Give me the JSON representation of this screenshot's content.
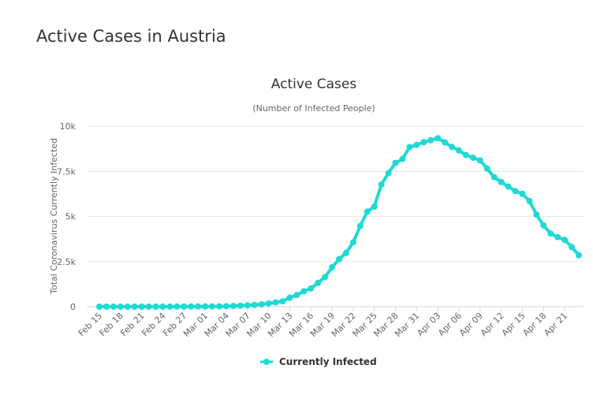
{
  "page_title": "Active Cases in Austria",
  "chart_data": {
    "type": "line",
    "title": "Active Cases",
    "subtitle": "(Number of Infected People)",
    "ylabel": "Total Coronavirus Currently Infected",
    "categories": [
      "Feb 15",
      null,
      null,
      "Feb 18",
      null,
      null,
      "Feb 21",
      null,
      null,
      "Feb 24",
      null,
      null,
      "Feb 27",
      null,
      null,
      "Mar 01",
      null,
      null,
      "Mar 04",
      null,
      null,
      "Mar 07",
      null,
      null,
      "Mar 10",
      null,
      null,
      "Mar 13",
      null,
      null,
      "Mar 16",
      null,
      null,
      "Mar 19",
      null,
      null,
      "Mar 22",
      null,
      null,
      "Mar 25",
      null,
      null,
      "Mar 28",
      null,
      null,
      "Mar 31",
      null,
      null,
      "Apr 03",
      null,
      null,
      "Apr 06",
      null,
      null,
      "Apr 09",
      null,
      null,
      "Apr 12",
      null,
      null,
      "Apr 15",
      null,
      null,
      "Apr 18",
      null,
      null,
      "Apr 21",
      null,
      null
    ],
    "series": [
      {
        "name": "Currently Infected",
        "color": "#1fd9d4",
        "values": [
          0,
          0,
          0,
          0,
          0,
          0,
          0,
          0,
          0,
          0,
          2,
          3,
          4,
          6,
          9,
          10,
          10,
          18,
          24,
          37,
          55,
          74,
          97,
          127,
          176,
          235,
          296,
          494,
          645,
          854,
          1009,
          1318,
          1634,
          2183,
          2631,
          2980,
          3563,
          4470,
          5265,
          5541,
          6763,
          7400,
          7960,
          8185,
          8840,
          8960,
          9110,
          9220,
          9330,
          9100,
          8850,
          8650,
          8400,
          8250,
          8100,
          7650,
          7170,
          6900,
          6650,
          6400,
          6250,
          5850,
          5100,
          4500,
          4050,
          3850,
          3700,
          3300,
          2850
        ]
      }
    ],
    "ylim": [
      0,
      10000
    ],
    "yticks": [
      0,
      {
        "value": 2500,
        "label": "2.5k"
      },
      {
        "value": 5000,
        "label": "5k"
      },
      {
        "value": 7500,
        "label": "7.5k"
      },
      {
        "value": 10000,
        "label": "10k"
      }
    ],
    "grid": true,
    "legend": "bottom"
  }
}
